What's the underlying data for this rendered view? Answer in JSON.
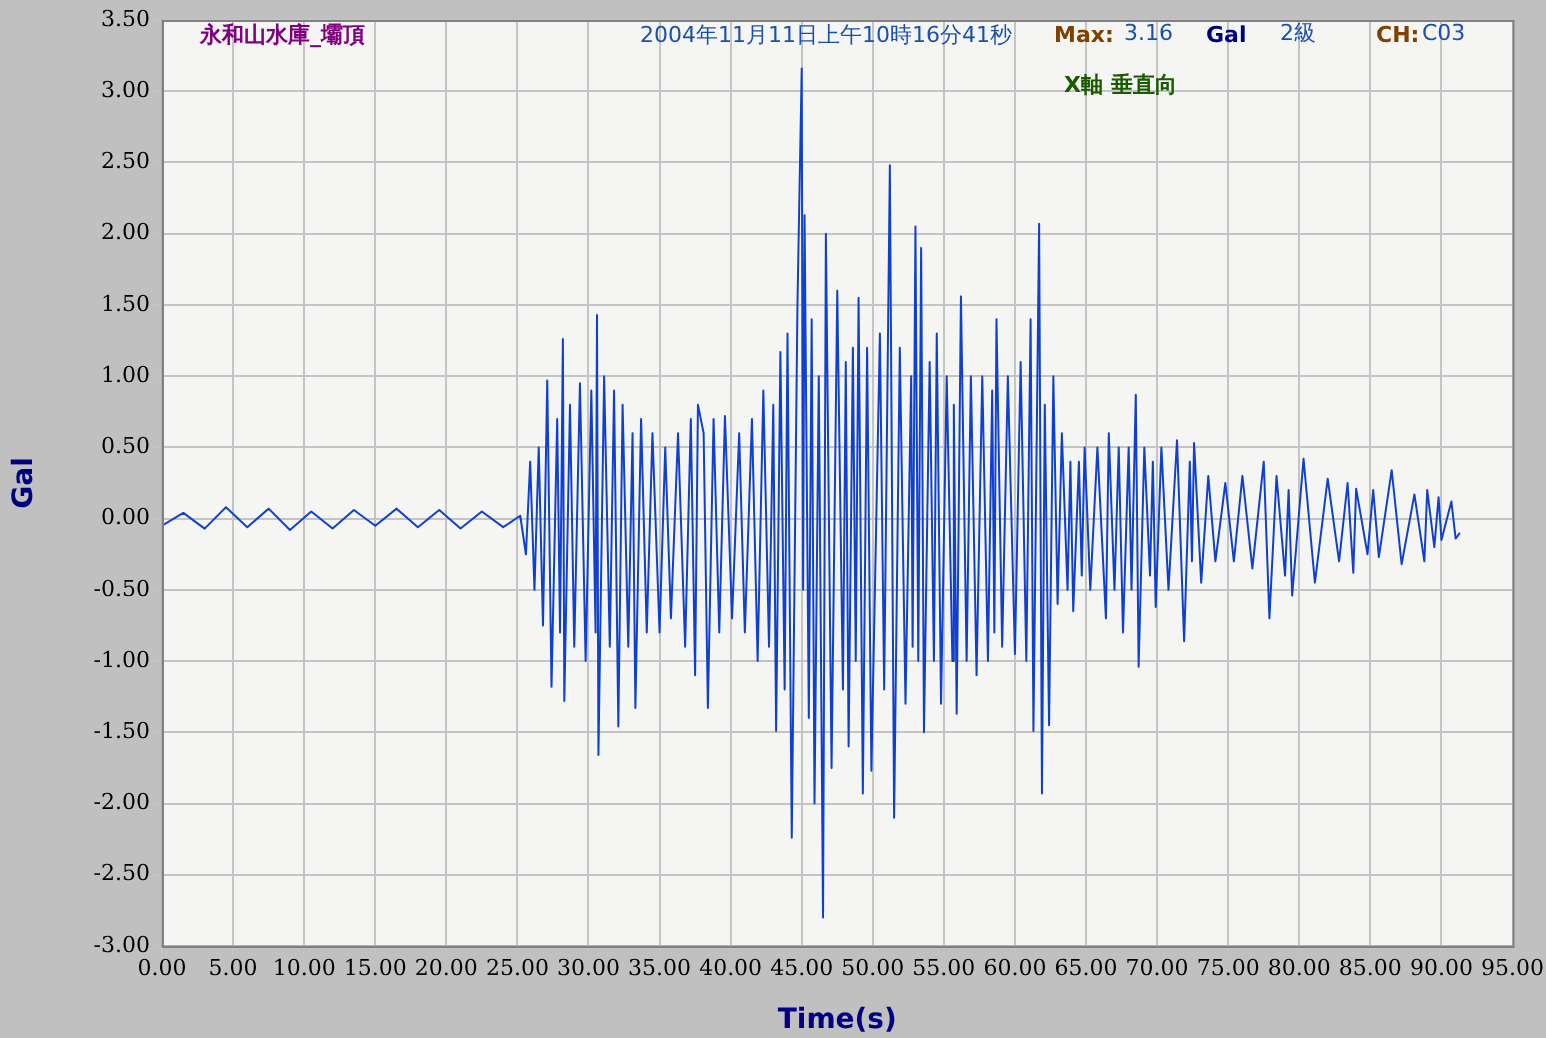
{
  "chart_data": {
    "type": "line",
    "xlabel": "Time(s)",
    "ylabel": "Gal",
    "annotations": [
      "永和山水庫_壩頂",
      "2004年11月11日上午10時16分41秒",
      "Max:",
      "3.16",
      "Gal",
      "2級",
      "CH:",
      "C03",
      "X軸 垂直向"
    ],
    "xlim": [
      0,
      95
    ],
    "xticks": [
      {
        "value": 0,
        "label": "0.00"
      },
      {
        "value": 5,
        "label": "5.00"
      },
      {
        "value": 10,
        "label": "10.00"
      },
      {
        "value": 15,
        "label": "15.00"
      },
      {
        "value": 20,
        "label": "20.00"
      },
      {
        "value": 25,
        "label": "25.00"
      },
      {
        "value": 30,
        "label": "30.00"
      },
      {
        "value": 35,
        "label": "35.00"
      },
      {
        "value": 40,
        "label": "40.00"
      },
      {
        "value": 45,
        "label": "45.00"
      },
      {
        "value": 50,
        "label": "50.00"
      },
      {
        "value": 55,
        "label": "55.00"
      },
      {
        "value": 60,
        "label": "60.00"
      },
      {
        "value": 65,
        "label": "65.00"
      },
      {
        "value": 70,
        "label": "70.00"
      },
      {
        "value": 75,
        "label": "75.00"
      },
      {
        "value": 80,
        "label": "80.00"
      },
      {
        "value": 85,
        "label": "85.00"
      },
      {
        "value": 90,
        "label": "90.00"
      },
      {
        "value": 95,
        "label": "95.00"
      }
    ],
    "ylim": [
      -3,
      3.5
    ],
    "yticks": [
      {
        "value": -3,
        "label": "-3.00"
      },
      {
        "value": -2.5,
        "label": "-2.50"
      },
      {
        "value": -2,
        "label": "-2.00"
      },
      {
        "value": -1.5,
        "label": "-1.50"
      },
      {
        "value": -1,
        "label": "-1.00"
      },
      {
        "value": -0.5,
        "label": "-0.50"
      },
      {
        "value": 0,
        "label": "0.00"
      },
      {
        "value": 0.5,
        "label": "0.50"
      },
      {
        "value": 1,
        "label": "1.00"
      },
      {
        "value": 1.5,
        "label": "1.50"
      },
      {
        "value": 2,
        "label": "2.00"
      },
      {
        "value": 2.5,
        "label": "2.50"
      },
      {
        "value": 3,
        "label": "3.00"
      },
      {
        "value": 3.5,
        "label": "3.50"
      }
    ],
    "grid": true,
    "legend": false,
    "marker": "none",
    "line_style": "solid",
    "series": [
      {
        "color": "#1040d0",
        "x": [
          0,
          1.5,
          3,
          4.5,
          6,
          7.5,
          9,
          10.5,
          12,
          13.5,
          15,
          16.5,
          18,
          19.5,
          21,
          22.5,
          24,
          25.2,
          25.6,
          25.9,
          26.2,
          26.5,
          26.8,
          27.1,
          27.4,
          27.8,
          28.0,
          28.2,
          28.3,
          28.7,
          29.0,
          29.4,
          29.8,
          30.2,
          30.5,
          30.6,
          30.7,
          31.1,
          31.5,
          31.8,
          32.1,
          32.4,
          32.8,
          33.1,
          33.3,
          33.7,
          34.1,
          34.5,
          35.0,
          35.4,
          35.8,
          36.3,
          36.8,
          37.2,
          37.5,
          37.7,
          38.1,
          38.4,
          38.8,
          39.2,
          39.6,
          40.1,
          40.6,
          41.0,
          41.5,
          41.9,
          42.3,
          42.7,
          43.0,
          43.2,
          43.5,
          43.8,
          44.0,
          44.3,
          44.7,
          45.0,
          45.1,
          45.2,
          45.5,
          45.7,
          45.9,
          46.2,
          46.5,
          46.7,
          47.1,
          47.5,
          47.9,
          48.1,
          48.3,
          48.6,
          48.8,
          49.0,
          49.3,
          49.6,
          49.9,
          50.5,
          50.8,
          51.2,
          51.5,
          51.9,
          52.3,
          52.7,
          52.8,
          53.0,
          53.2,
          53.4,
          53.6,
          54.0,
          54.3,
          54.5,
          54.8,
          55.2,
          55.6,
          55.7,
          55.9,
          56.2,
          56.6,
          56.9,
          57.3,
          57.7,
          58.1,
          58.4,
          58.55,
          58.7,
          59.1,
          59.5,
          60.0,
          60.4,
          60.8,
          61.1,
          61.3,
          61.7,
          61.9,
          62.1,
          62.4,
          62.7,
          63.0,
          63.3,
          63.7,
          63.9,
          64.1,
          64.5,
          64.7,
          64.9,
          65.3,
          65.8,
          66.4,
          66.6,
          67.0,
          67.3,
          67.6,
          68.0,
          68.2,
          68.5,
          68.7,
          69.1,
          69.5,
          69.7,
          69.9,
          70.3,
          70.8,
          71.4,
          71.9,
          72.3,
          72.45,
          72.6,
          73.1,
          73.6,
          74.1,
          74.8,
          75.4,
          76.0,
          76.7,
          77.5,
          77.9,
          78.4,
          79.0,
          79.25,
          79.5,
          80.3,
          81.1,
          82.0,
          82.8,
          83.4,
          83.8,
          84.0,
          84.8,
          85.2,
          85.6,
          86.5,
          87.2,
          88.1,
          88.8,
          89.0,
          89.5,
          89.8,
          90.0,
          90.7,
          91.0,
          91.3
        ],
        "values": [
          -0.05,
          0.04,
          -0.07,
          0.08,
          -0.06,
          0.07,
          -0.08,
          0.05,
          -0.07,
          0.06,
          -0.05,
          0.07,
          -0.06,
          0.06,
          -0.07,
          0.05,
          -0.06,
          0.02,
          -0.25,
          0.4,
          -0.5,
          0.5,
          -0.75,
          0.97,
          -1.18,
          0.7,
          -0.8,
          1.26,
          -1.28,
          0.8,
          -0.9,
          0.95,
          -1.0,
          0.9,
          -0.8,
          1.43,
          -1.66,
          1.0,
          -0.9,
          0.9,
          -1.46,
          0.8,
          -0.9,
          0.6,
          -1.33,
          0.7,
          -0.8,
          0.6,
          -0.8,
          0.5,
          -0.7,
          0.6,
          -0.9,
          0.7,
          -1.1,
          0.8,
          0.6,
          -1.33,
          0.7,
          -0.8,
          0.72,
          -0.7,
          0.6,
          -0.8,
          0.7,
          -1.0,
          0.9,
          -0.9,
          0.8,
          -1.49,
          1.17,
          -1.2,
          1.3,
          -2.24,
          1.5,
          3.16,
          -0.5,
          2.13,
          -1.4,
          1.4,
          -2.0,
          1.0,
          -2.8,
          2.0,
          -1.75,
          1.6,
          -1.2,
          1.1,
          -1.6,
          1.2,
          -1.0,
          1.55,
          -1.93,
          1.2,
          -1.77,
          1.3,
          -1.2,
          2.48,
          -2.1,
          1.2,
          -1.3,
          1.0,
          -0.9,
          2.05,
          -1.0,
          1.9,
          -1.5,
          1.1,
          -1.0,
          1.3,
          -1.3,
          1.0,
          -1.0,
          0.8,
          -1.37,
          1.56,
          -1.0,
          1.0,
          -1.1,
          1.0,
          -1.0,
          0.9,
          -0.8,
          1.4,
          -0.9,
          1.0,
          -0.95,
          1.1,
          -1.0,
          1.4,
          -1.49,
          2.07,
          -1.93,
          0.8,
          -1.45,
          1.0,
          -0.6,
          0.6,
          -0.5,
          0.4,
          -0.65,
          0.4,
          -0.4,
          0.5,
          -0.5,
          0.5,
          -0.7,
          0.6,
          -0.5,
          0.5,
          -0.8,
          0.5,
          -0.5,
          0.87,
          -1.04,
          0.5,
          -0.4,
          0.4,
          -0.62,
          0.5,
          -0.5,
          0.55,
          -0.86,
          0.4,
          -0.3,
          0.53,
          -0.45,
          0.3,
          -0.3,
          0.25,
          -0.3,
          0.3,
          -0.35,
          0.4,
          -0.7,
          0.3,
          -0.4,
          0.2,
          -0.54,
          0.42,
          -0.45,
          0.28,
          -0.3,
          0.25,
          -0.38,
          0.21,
          -0.25,
          0.2,
          -0.27,
          0.34,
          -0.32,
          0.17,
          -0.3,
          0.2,
          -0.2,
          0.15,
          -0.15,
          0.12,
          -0.14,
          -0.1
        ]
      }
    ]
  }
}
